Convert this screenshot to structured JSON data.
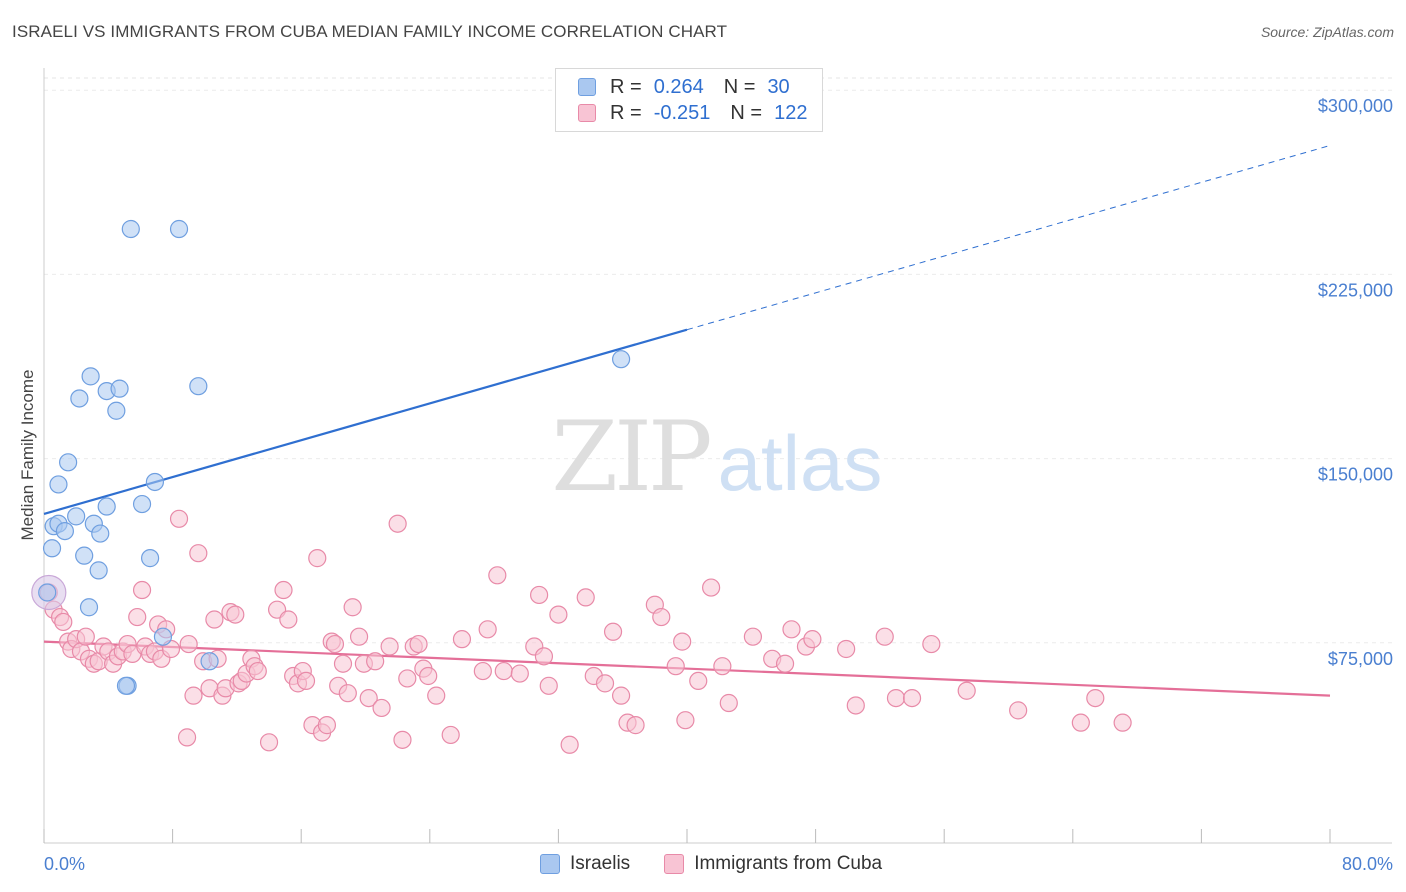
{
  "title": "ISRAELI VS IMMIGRANTS FROM CUBA MEDIAN FAMILY INCOME CORRELATION CHART",
  "source": "Source: ZipAtlas.com",
  "watermark": {
    "zip": "ZIP",
    "atlas": "atlas"
  },
  "legend": {
    "rows": [
      {
        "r_label": "R =",
        "r_value": "0.264",
        "n_label": "N =",
        "n_value": "30",
        "color": "#aac8f0",
        "border": "#6f9fe0"
      },
      {
        "r_label": "R =",
        "r_value": "-0.251",
        "n_label": "N =",
        "n_value": "122",
        "color": "#f8c4d4",
        "border": "#e88aa8"
      }
    ]
  },
  "bottom_legend": [
    "Israelis",
    "Immigrants from Cuba"
  ],
  "chart_data": {
    "type": "scatter",
    "title": "ISRAELI VS IMMIGRANTS FROM CUBA MEDIAN FAMILY INCOME CORRELATION CHART",
    "xlabel": "",
    "ylabel": "Median Family Income",
    "xlim": [
      0,
      80
    ],
    "ylim": [
      0,
      318000
    ],
    "x_tick_labels": [
      "0.0%",
      "80.0%"
    ],
    "y_ticks": [
      75000,
      150000,
      225000,
      300000
    ],
    "y_tick_labels": [
      "$75,000",
      "$150,000",
      "$225,000",
      "$300,000"
    ],
    "grid": true,
    "series": [
      {
        "name": "Israelis",
        "color": "#aac8f0",
        "stroke": "#6f9fe0",
        "trend": {
          "x0": 0,
          "y0": 134000,
          "x1": 40,
          "y1": 209000,
          "dash_to_x": 80,
          "dash_to_y": 284000,
          "color": "#2f6fd0"
        },
        "points": [
          [
            0.2,
            102000
          ],
          [
            0.5,
            120000
          ],
          [
            0.6,
            129000
          ],
          [
            0.9,
            130000
          ],
          [
            0.9,
            146000
          ],
          [
            1.3,
            127000
          ],
          [
            1.5,
            155000
          ],
          [
            2.0,
            133000
          ],
          [
            2.2,
            181000
          ],
          [
            2.5,
            117000
          ],
          [
            2.8,
            96000
          ],
          [
            2.9,
            190000
          ],
          [
            3.1,
            130000
          ],
          [
            3.4,
            111000
          ],
          [
            3.5,
            126000
          ],
          [
            3.9,
            137000
          ],
          [
            3.9,
            184000
          ],
          [
            4.5,
            176000
          ],
          [
            4.7,
            185000
          ],
          [
            5.2,
            64000
          ],
          [
            5.4,
            250000
          ],
          [
            6.1,
            138000
          ],
          [
            6.6,
            116000
          ],
          [
            6.9,
            147000
          ],
          [
            7.4,
            84000
          ],
          [
            8.4,
            250000
          ],
          [
            9.6,
            186000
          ],
          [
            10.3,
            74000
          ],
          [
            35.9,
            197000
          ],
          [
            5.1,
            64000
          ]
        ]
      },
      {
        "name": "Immigrants from Cuba",
        "color": "#f8c4d4",
        "stroke": "#e88aa8",
        "trend": {
          "x0": 0,
          "y0": 82000,
          "x1": 80,
          "y1": 60000,
          "color": "#e46f98"
        },
        "points": [
          [
            0.3,
            102000
          ],
          [
            0.6,
            95000
          ],
          [
            1.0,
            92000
          ],
          [
            1.2,
            90000
          ],
          [
            1.5,
            82000
          ],
          [
            1.7,
            79000
          ],
          [
            2.0,
            83000
          ],
          [
            2.3,
            78000
          ],
          [
            2.6,
            84000
          ],
          [
            2.8,
            75000
          ],
          [
            3.1,
            73000
          ],
          [
            3.4,
            74000
          ],
          [
            3.7,
            80000
          ],
          [
            4.0,
            78000
          ],
          [
            4.3,
            73000
          ],
          [
            4.6,
            76000
          ],
          [
            4.9,
            78000
          ],
          [
            5.2,
            81000
          ],
          [
            5.5,
            77000
          ],
          [
            5.8,
            92000
          ],
          [
            6.1,
            103000
          ],
          [
            6.3,
            80000
          ],
          [
            6.6,
            77000
          ],
          [
            6.9,
            78000
          ],
          [
            7.1,
            89000
          ],
          [
            7.3,
            75000
          ],
          [
            7.6,
            87000
          ],
          [
            7.9,
            79000
          ],
          [
            8.4,
            132000
          ],
          [
            8.9,
            43000
          ],
          [
            9.0,
            81000
          ],
          [
            9.3,
            60000
          ],
          [
            9.6,
            118000
          ],
          [
            9.9,
            74000
          ],
          [
            10.3,
            63000
          ],
          [
            10.6,
            91000
          ],
          [
            10.8,
            75000
          ],
          [
            11.1,
            60000
          ],
          [
            11.3,
            63000
          ],
          [
            11.6,
            94000
          ],
          [
            11.9,
            93000
          ],
          [
            12.1,
            65000
          ],
          [
            12.3,
            66000
          ],
          [
            12.6,
            69000
          ],
          [
            12.9,
            75000
          ],
          [
            13.1,
            72000
          ],
          [
            13.3,
            70000
          ],
          [
            14.0,
            41000
          ],
          [
            14.5,
            95000
          ],
          [
            14.9,
            103000
          ],
          [
            15.2,
            91000
          ],
          [
            15.5,
            68000
          ],
          [
            15.8,
            65000
          ],
          [
            16.1,
            70000
          ],
          [
            16.3,
            66000
          ],
          [
            16.7,
            48000
          ],
          [
            17.0,
            116000
          ],
          [
            17.3,
            45000
          ],
          [
            17.6,
            48000
          ],
          [
            17.9,
            82000
          ],
          [
            18.1,
            81000
          ],
          [
            18.3,
            64000
          ],
          [
            18.6,
            73000
          ],
          [
            18.9,
            61000
          ],
          [
            19.2,
            96000
          ],
          [
            19.6,
            84000
          ],
          [
            19.9,
            73000
          ],
          [
            20.2,
            59000
          ],
          [
            20.6,
            74000
          ],
          [
            21.0,
            55000
          ],
          [
            21.5,
            80000
          ],
          [
            22.0,
            130000
          ],
          [
            22.3,
            42000
          ],
          [
            22.6,
            67000
          ],
          [
            23.0,
            80000
          ],
          [
            23.3,
            81000
          ],
          [
            23.6,
            71000
          ],
          [
            23.9,
            68000
          ],
          [
            24.4,
            60000
          ],
          [
            25.3,
            44000
          ],
          [
            26.0,
            83000
          ],
          [
            27.3,
            70000
          ],
          [
            27.6,
            87000
          ],
          [
            28.2,
            109000
          ],
          [
            28.6,
            70000
          ],
          [
            29.6,
            69000
          ],
          [
            30.5,
            80000
          ],
          [
            30.8,
            101000
          ],
          [
            31.1,
            76000
          ],
          [
            31.4,
            64000
          ],
          [
            32.0,
            93000
          ],
          [
            32.7,
            40000
          ],
          [
            33.7,
            100000
          ],
          [
            34.2,
            68000
          ],
          [
            34.9,
            65000
          ],
          [
            35.4,
            86000
          ],
          [
            35.9,
            60000
          ],
          [
            36.3,
            49000
          ],
          [
            36.8,
            48000
          ],
          [
            38.0,
            97000
          ],
          [
            38.4,
            92000
          ],
          [
            39.3,
            72000
          ],
          [
            39.7,
            82000
          ],
          [
            39.9,
            50000
          ],
          [
            40.7,
            66000
          ],
          [
            41.5,
            104000
          ],
          [
            42.2,
            72000
          ],
          [
            42.6,
            57000
          ],
          [
            44.1,
            84000
          ],
          [
            45.3,
            75000
          ],
          [
            46.1,
            73000
          ],
          [
            46.5,
            87000
          ],
          [
            47.4,
            80000
          ],
          [
            47.8,
            83000
          ],
          [
            49.9,
            79000
          ],
          [
            50.5,
            56000
          ],
          [
            52.3,
            84000
          ],
          [
            53.0,
            59000
          ],
          [
            54.0,
            59000
          ],
          [
            55.2,
            81000
          ],
          [
            57.4,
            62000
          ],
          [
            60.6,
            54000
          ],
          [
            64.5,
            49000
          ],
          [
            65.4,
            59000
          ],
          [
            67.1,
            49000
          ]
        ]
      }
    ]
  }
}
